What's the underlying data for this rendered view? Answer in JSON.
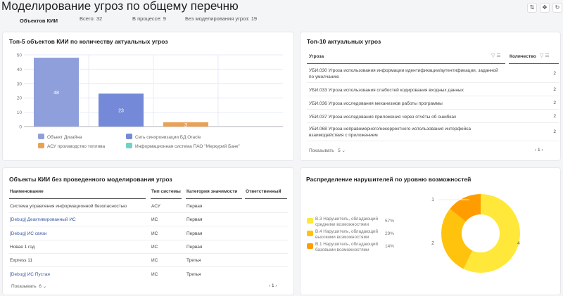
{
  "header": {
    "title": "Моделирование угроз по общему перечню",
    "tab": "Объектов КИИ",
    "total": "Всего: 32",
    "in_progress": "В процессе: 9",
    "without": "Без моделирования угроз: 19",
    "tools": [
      {
        "icon": "sliders-icon",
        "glyph": "⇅"
      },
      {
        "icon": "move-icon",
        "glyph": "✥"
      },
      {
        "icon": "refresh-icon",
        "glyph": "↻"
      }
    ]
  },
  "top5": {
    "title": "Топ-5 объектов КИИ по количеству актуальных угроз"
  },
  "chart_data": {
    "type": "bar",
    "title": "Топ-5 объектов КИИ по количеству актуальных угроз",
    "ylim": [
      0,
      50
    ],
    "yticks": [
      "0",
      "10",
      "20",
      "30",
      "40",
      "50"
    ],
    "categories": [
      "Объект Дизайна",
      "Сеть синхронизации БД Oracle",
      "АСУ производство топлива",
      "Информационная система ПАО \"Меркурий Банк\""
    ],
    "values": [
      48,
      23,
      3,
      0
    ],
    "colors": [
      "#8f9fdc",
      "#7489d8",
      "#e9a157",
      "#6fd3c3"
    ],
    "legend": "bottom",
    "grid": true
  },
  "top10": {
    "title": "Топ-10 актуальных угроз",
    "col_threat": "Угроза",
    "col_count": "Количество",
    "rows": [
      {
        "threat": "УБИ.030 Угроза использования информации идентификации/аутентификации, заданной по умолчанию",
        "count": "2"
      },
      {
        "threat": "УБИ.033 Угроза использования слабостей кодирования входных данных",
        "count": "2"
      },
      {
        "threat": "УБИ.036 Угроза исследования механизмов работы программы",
        "count": "2"
      },
      {
        "threat": "УБИ.037 Угроза исследования приложения через отчёты об ошибках",
        "count": "2"
      },
      {
        "threat": "УБИ.068 Угроза неправомерного/некорректного использования интерфейса взаимодействия с приложением",
        "count": "2"
      }
    ],
    "show_label": "Показывать",
    "page_size": "5",
    "page": "1"
  },
  "objects": {
    "title": "Объекты КИИ без проведенного моделирования угроз",
    "cols": [
      "Наименование",
      "Тип системы",
      "Категория значимости",
      "Ответственный"
    ],
    "rows": [
      [
        "Система управления информационной безопасностью",
        "АСУ",
        "Первая"
      ],
      [
        "[Debug] Деактивированный ИС",
        "ИС",
        "Первая"
      ],
      [
        "[Debug] ИС связи",
        "ИС",
        "Первая"
      ],
      [
        "Новая 1 год",
        "ИС",
        "Первая"
      ],
      [
        "Express 11",
        "ИС",
        "Третья"
      ],
      [
        "[Debug] ИС Пустая",
        "ИС",
        "Третья"
      ]
    ],
    "show_label": "Показывать",
    "page_size": "6",
    "page": "1"
  },
  "violators": {
    "title": "Распределение нарушителей по уровню возможностей",
    "items": [
      {
        "label": "В.3 Нарушитель, обладающий средними возможностями",
        "pct": "57%",
        "value": 4,
        "color": "#ffe83a"
      },
      {
        "label": "В.4 Нарушитель, обладающий высокими возможностями",
        "pct": "29%",
        "value": 2,
        "color": "#ffc30e"
      },
      {
        "label": "В.1 Нарушитель, обладающий базовыми возможностями",
        "pct": "14%",
        "value": 1,
        "color": "#ff9d00"
      }
    ]
  }
}
